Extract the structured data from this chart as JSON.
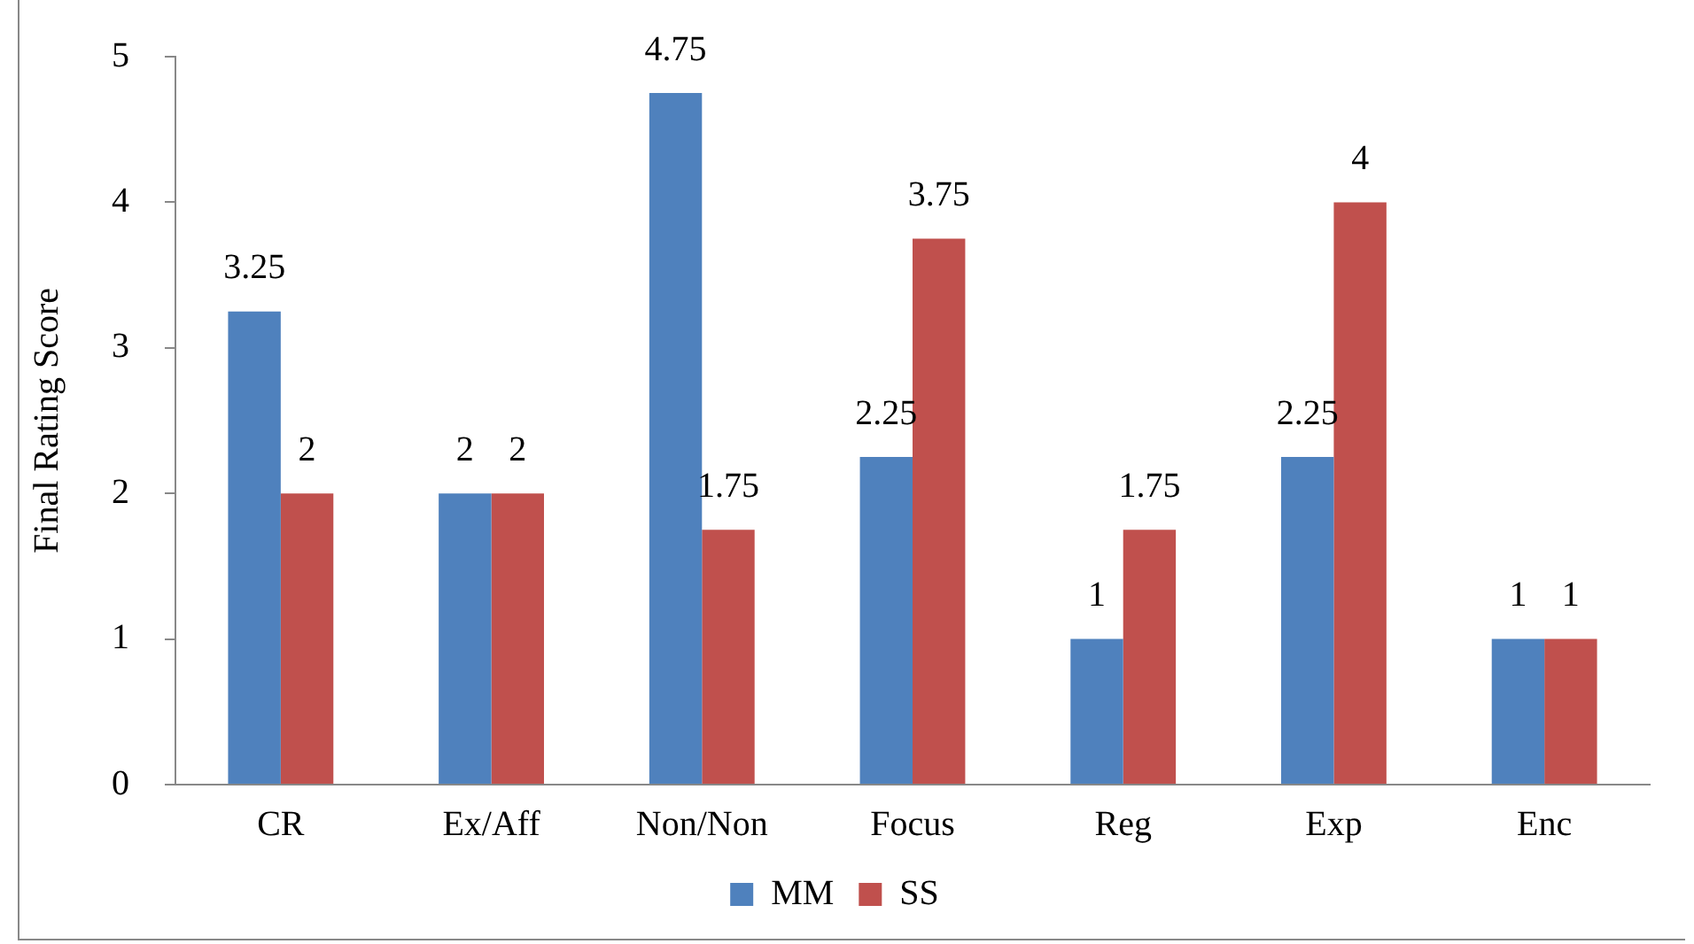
{
  "chart_data": {
    "type": "bar",
    "ylabel": "Final Rating Score",
    "categories": [
      "CR",
      "Ex/Aff",
      "Non/Non",
      "Focus",
      "Reg",
      "Exp",
      "Enc"
    ],
    "series": [
      {
        "name": "MM",
        "color": "#4f81bd",
        "values": [
          3.25,
          2,
          4.75,
          2.25,
          1,
          2.25,
          1
        ]
      },
      {
        "name": "SS",
        "color": "#c0504d",
        "values": [
          2,
          2,
          1.75,
          3.75,
          1.75,
          4,
          1
        ]
      }
    ],
    "ylim": [
      0,
      5
    ],
    "yticks": [
      0,
      1,
      2,
      3,
      4,
      5
    ],
    "grid": false,
    "legend": "bottom",
    "data_labels": true
  }
}
